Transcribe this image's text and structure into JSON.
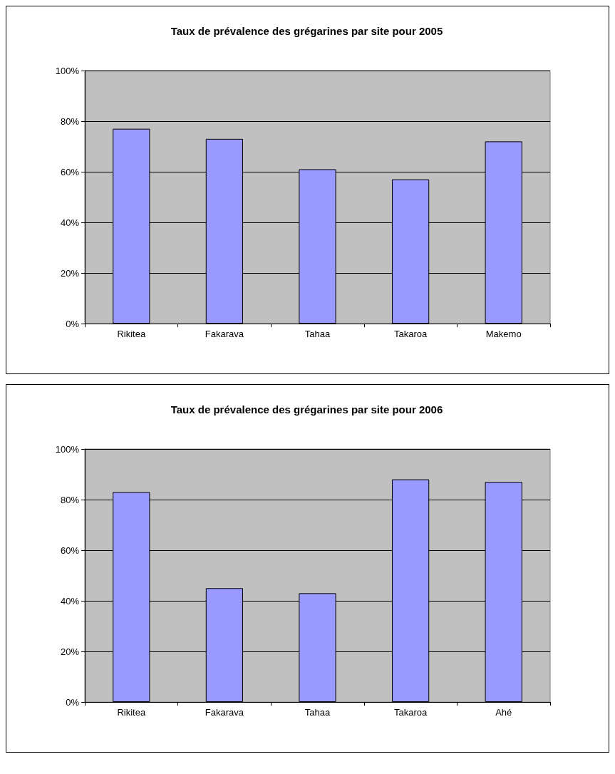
{
  "chart_data": [
    {
      "type": "bar",
      "title": "Taux de prévalence des grégarines par site pour 2005",
      "categories": [
        "Rikitea",
        "Fakarava",
        "Tahaa",
        "Takaroa",
        "Makemo"
      ],
      "values": [
        77,
        73,
        61,
        57,
        72
      ],
      "color": "#9999ff",
      "ylim": [
        0,
        100
      ],
      "yticks": [
        {
          "value": 0,
          "label": "0%"
        },
        {
          "value": 20,
          "label": "20%"
        },
        {
          "value": 40,
          "label": "40%"
        },
        {
          "value": 60,
          "label": "60%"
        },
        {
          "value": 80,
          "label": "80%"
        },
        {
          "value": 100,
          "label": "100%"
        }
      ],
      "grid": "y"
    },
    {
      "type": "bar",
      "title": "Taux de prévalence des grégarines par site pour 2006",
      "categories": [
        "Rikitea",
        "Fakarava",
        "Tahaa",
        "Takaroa",
        "Ahé"
      ],
      "values": [
        83,
        45,
        43,
        88,
        87
      ],
      "color": "#9999ff",
      "ylim": [
        0,
        100
      ],
      "yticks": [
        {
          "value": 0,
          "label": "0%"
        },
        {
          "value": 20,
          "label": "20%"
        },
        {
          "value": 40,
          "label": "40%"
        },
        {
          "value": 60,
          "label": "60%"
        },
        {
          "value": 80,
          "label": "80%"
        },
        {
          "value": 100,
          "label": "100%"
        }
      ],
      "grid": "y"
    }
  ]
}
